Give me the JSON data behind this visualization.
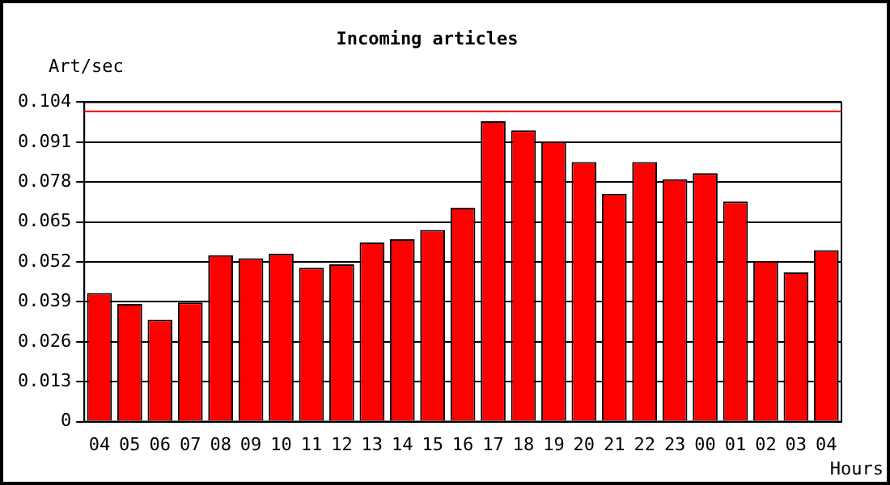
{
  "chart_data": {
    "type": "bar",
    "title": "Incoming articles",
    "xlabel": "Hours",
    "ylabel": "Art/sec",
    "categories": [
      "04",
      "05",
      "06",
      "07",
      "08",
      "09",
      "10",
      "11",
      "12",
      "13",
      "14",
      "15",
      "16",
      "17",
      "18",
      "19",
      "20",
      "21",
      "22",
      "23",
      "00",
      "01",
      "02",
      "03",
      "04"
    ],
    "values": [
      0.0419,
      0.0383,
      0.0332,
      0.0388,
      0.0542,
      0.0532,
      0.0547,
      0.0501,
      0.0512,
      0.0583,
      0.0594,
      0.0624,
      0.0696,
      0.0978,
      0.0948,
      0.0912,
      0.0845,
      0.0742,
      0.0845,
      0.0789,
      0.0809,
      0.0717,
      0.0523,
      0.0486,
      0.0558
    ],
    "color": "#ff0000",
    "ylim": [
      0,
      0.104
    ],
    "yticks": [
      "0",
      0.013,
      0.026,
      0.039,
      0.052,
      0.065,
      0.078,
      0.091,
      0.104
    ],
    "ref_lines": [
      {
        "axis": "y",
        "value": 0.101,
        "color": "#ff0000"
      }
    ],
    "grid": "y",
    "legend": false
  }
}
